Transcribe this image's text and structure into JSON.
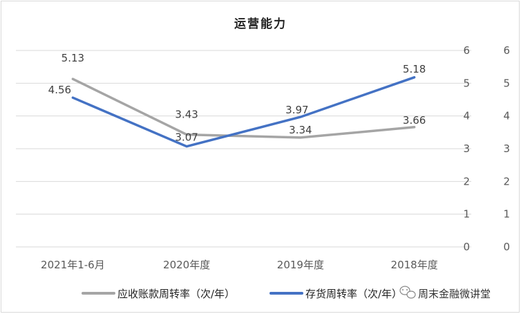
{
  "chart_data": {
    "type": "line",
    "title": "运营能力",
    "categories": [
      "2021年1-6月",
      "2020年度",
      "2019年度",
      "2018年度"
    ],
    "series": [
      {
        "name": "应收账款周转率（次/年）",
        "values": [
          5.13,
          3.43,
          3.34,
          3.66
        ],
        "color": "#a5a5a5"
      },
      {
        "name": "存货周转率（次/年）",
        "values": [
          4.56,
          3.07,
          3.97,
          5.18
        ],
        "color": "#4472c4"
      }
    ],
    "ylim": [
      0,
      6
    ],
    "yticks_left": [
      "0",
      "1",
      "2",
      "3",
      "4",
      "5",
      "6"
    ],
    "yticks_right": [
      "0",
      "1",
      "2",
      "3",
      "4",
      "5",
      "6"
    ],
    "grid": true,
    "legend": "bottom"
  },
  "watermark": {
    "text": "周末金融微讲堂",
    "icon": "wechat-icon"
  }
}
